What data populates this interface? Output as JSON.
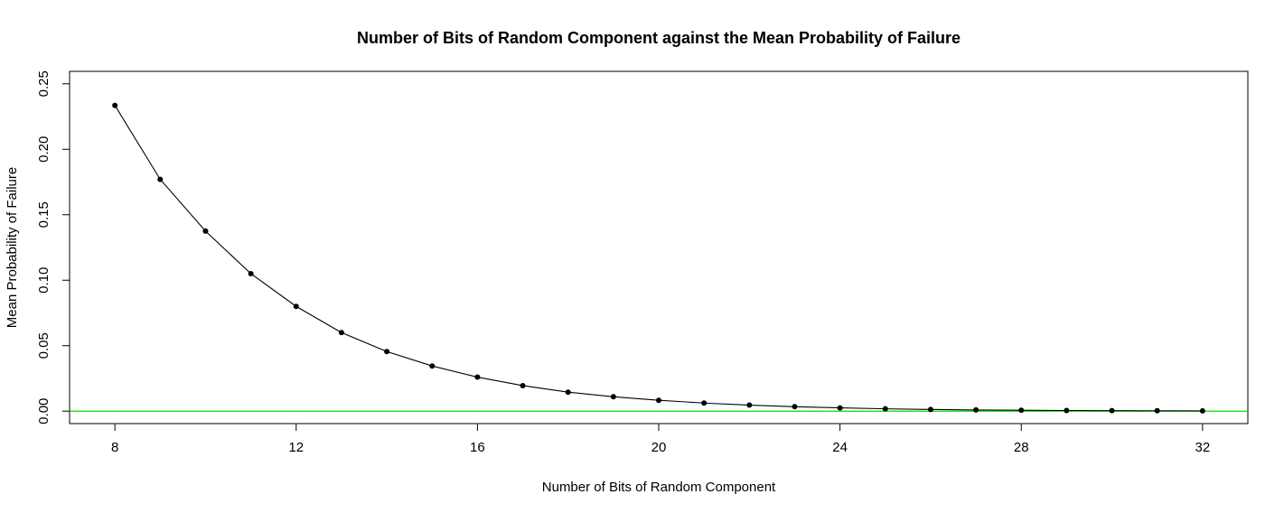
{
  "chart_data": {
    "type": "line",
    "title": "Number of Bits of Random Component against the Mean Probability of Failure",
    "xlabel": "Number of Bits of Random Component",
    "ylabel": "Mean Probability of Failure",
    "xlim": [
      7.0,
      33.0
    ],
    "ylim": [
      -0.0095,
      0.2595
    ],
    "x_ticks": [
      8,
      12,
      16,
      20,
      24,
      28,
      32
    ],
    "x_tick_labels": [
      "8",
      "12",
      "16",
      "20",
      "24",
      "28",
      "32"
    ],
    "y_ticks": [
      0.0,
      0.05,
      0.1,
      0.15,
      0.2,
      0.25
    ],
    "y_tick_labels": [
      "0.00",
      "0.05",
      "0.10",
      "0.15",
      "0.20",
      "0.25"
    ],
    "grid": false,
    "series": [
      {
        "x": [
          8,
          9,
          10,
          11,
          12,
          13,
          14,
          15,
          16,
          17,
          18,
          19,
          20,
          21,
          22,
          23,
          24,
          25,
          26,
          27,
          28,
          29,
          30,
          31,
          32
        ],
        "y": [
          0.2335,
          0.177,
          0.1375,
          0.105,
          0.08,
          0.06,
          0.0455,
          0.0345,
          0.026,
          0.0195,
          0.0145,
          0.011,
          0.0083,
          0.0062,
          0.0046,
          0.0034,
          0.0025,
          0.0018,
          0.0013,
          0.0009,
          0.0007,
          0.0005,
          0.0004,
          0.0003,
          0.0002
        ],
        "color": "#000000",
        "marker": "filled-circle"
      }
    ],
    "reference_line": {
      "y": 0.0,
      "color": "#00dd00"
    }
  }
}
